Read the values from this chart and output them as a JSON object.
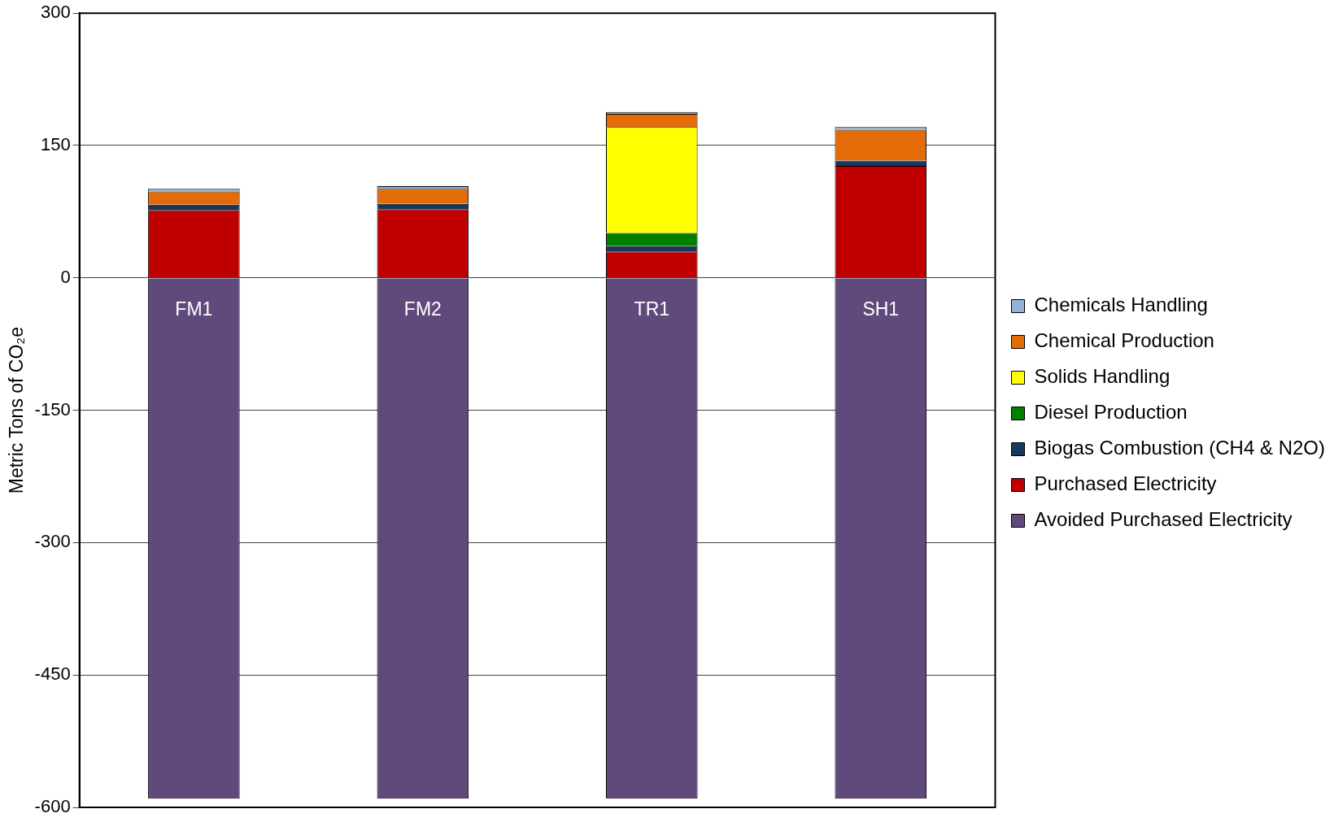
{
  "chart_data": {
    "type": "bar",
    "ylabel": "Metric Tons of CO₂e",
    "categories": [
      "FM1",
      "FM2",
      "TR1",
      "SH1"
    ],
    "stacked": true,
    "series": [
      {
        "name": "Avoided Purchased Electricity",
        "color": "#604a7b",
        "values": [
          -590,
          -590,
          -590,
          -590
        ]
      },
      {
        "name": "Purchased Electricity",
        "color": "#c00000",
        "values": [
          77,
          78,
          30,
          127
        ]
      },
      {
        "name": "Biogas Combustion (CH4 & N2O)",
        "color": "#17375e",
        "values": [
          6,
          6,
          6,
          6
        ]
      },
      {
        "name": "Diesel Production",
        "color": "#008000",
        "values": [
          0,
          0,
          15,
          0
        ]
      },
      {
        "name": "Solids Handling",
        "color": "#ffff00",
        "values": [
          0,
          0,
          120,
          0
        ]
      },
      {
        "name": "Chemical Production",
        "color": "#e36c09",
        "values": [
          15,
          17,
          15,
          35
        ]
      },
      {
        "name": "Chemicals Handling",
        "color": "#95b3d7",
        "values": [
          3,
          3,
          2,
          3
        ]
      }
    ],
    "ylim": [
      -600,
      300
    ],
    "yticks": [
      -600,
      -450,
      -300,
      -150,
      0,
      150,
      300
    ],
    "grid": "y",
    "legend": "right"
  }
}
